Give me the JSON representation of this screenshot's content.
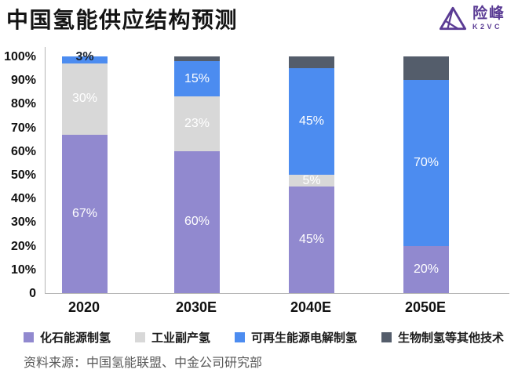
{
  "header": {
    "title": "中国氢能供应结构预测",
    "logo": {
      "name": "险峰",
      "sub": "K2VC",
      "color": "#5A3B94"
    }
  },
  "chart_data": {
    "type": "bar",
    "stacked": true,
    "title": "中国氢能供应结构预测",
    "categories": [
      "2020",
      "2030E",
      "2040E",
      "2050E"
    ],
    "series": [
      {
        "name": "化石能源制氢",
        "color": "#9189CF",
        "values": [
          67,
          60,
          45,
          20
        ],
        "labels": [
          "67%",
          "60%",
          "45%",
          "20%"
        ]
      },
      {
        "name": "工业副产氢",
        "color": "#D8D8D8",
        "values": [
          30,
          23,
          5,
          0
        ],
        "labels": [
          "30%",
          "23%",
          "5%",
          ""
        ]
      },
      {
        "name": "可再生能源电解制氢",
        "color": "#4C8CF0",
        "values": [
          3,
          15,
          45,
          70
        ],
        "labels": [
          "3%",
          "15%",
          "45%",
          "70%"
        ],
        "label_outside": [
          true,
          false,
          false,
          false
        ]
      },
      {
        "name": "生物制氢等其他技术",
        "color": "#545D6B",
        "values": [
          0,
          2,
          5,
          10
        ],
        "labels": [
          "",
          "",
          "",
          ""
        ]
      }
    ],
    "y_ticks": [
      "100%",
      "90%",
      "80%",
      "70%",
      "60%",
      "50%",
      "40%",
      "30%",
      "20%",
      "10%",
      "0"
    ],
    "ylim": [
      0,
      100
    ],
    "grid": false,
    "legend_position": "bottom",
    "outside_label_color": "#1b2430",
    "inside_label_color": "#ffffff"
  },
  "source": "资料来源：中国氢能联盟、中金公司研究部"
}
